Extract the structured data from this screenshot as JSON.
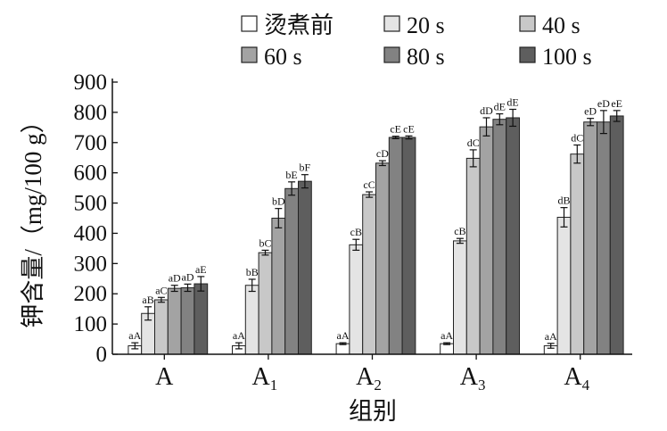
{
  "chart_data": {
    "type": "bar",
    "xlabel": "组别",
    "ylabel": "钾含量/（mg/100 g）",
    "ylim": [
      0,
      900
    ],
    "yticks": [
      0,
      100,
      200,
      300,
      400,
      500,
      600,
      700,
      800,
      900
    ],
    "grid": false,
    "legend_position": "top",
    "categories": [
      {
        "base": "A",
        "sub": ""
      },
      {
        "base": "A",
        "sub": "1"
      },
      {
        "base": "A",
        "sub": "2"
      },
      {
        "base": "A",
        "sub": "3"
      },
      {
        "base": "A",
        "sub": "4"
      }
    ],
    "series": [
      {
        "name": "烫煮前",
        "color": "#ffffff",
        "values": [
          28,
          28,
          35,
          35,
          28
        ],
        "errors": [
          10,
          10,
          3,
          3,
          8
        ],
        "labels": [
          "aA",
          "aA",
          "aA",
          "aA",
          "aA"
        ]
      },
      {
        "name": "20 s",
        "color": "#e4e4e4",
        "values": [
          135,
          228,
          362,
          375,
          453
        ],
        "errors": [
          22,
          20,
          18,
          8,
          32
        ],
        "labels": [
          "aB",
          "bB",
          "cB",
          "cB",
          "dB"
        ]
      },
      {
        "name": "40 s",
        "color": "#c8c8c8",
        "values": [
          180,
          336,
          528,
          648,
          662
        ],
        "errors": [
          8,
          8,
          9,
          28,
          30
        ],
        "labels": [
          "aC",
          "bC",
          "cC",
          "dC",
          "dC"
        ]
      },
      {
        "name": "60 s",
        "color": "#a3a3a3",
        "values": [
          218,
          450,
          632,
          752,
          768
        ],
        "errors": [
          10,
          32,
          8,
          30,
          12
        ],
        "labels": [
          "aD",
          "bD",
          "cD",
          "dD",
          "eD"
        ]
      },
      {
        "name": "80 s",
        "color": "#828282",
        "values": [
          220,
          548,
          717,
          777,
          768
        ],
        "errors": [
          12,
          22,
          4,
          18,
          38
        ],
        "labels": [
          "aD",
          "bE",
          "cE",
          "dE",
          "eD"
        ]
      },
      {
        "name": "100 s",
        "color": "#5e5e5e",
        "values": [
          233,
          572,
          717,
          782,
          788
        ],
        "errors": [
          24,
          22,
          5,
          28,
          18
        ],
        "labels": [
          "aE",
          "bF",
          "cE",
          "dE",
          "eE"
        ]
      }
    ]
  }
}
